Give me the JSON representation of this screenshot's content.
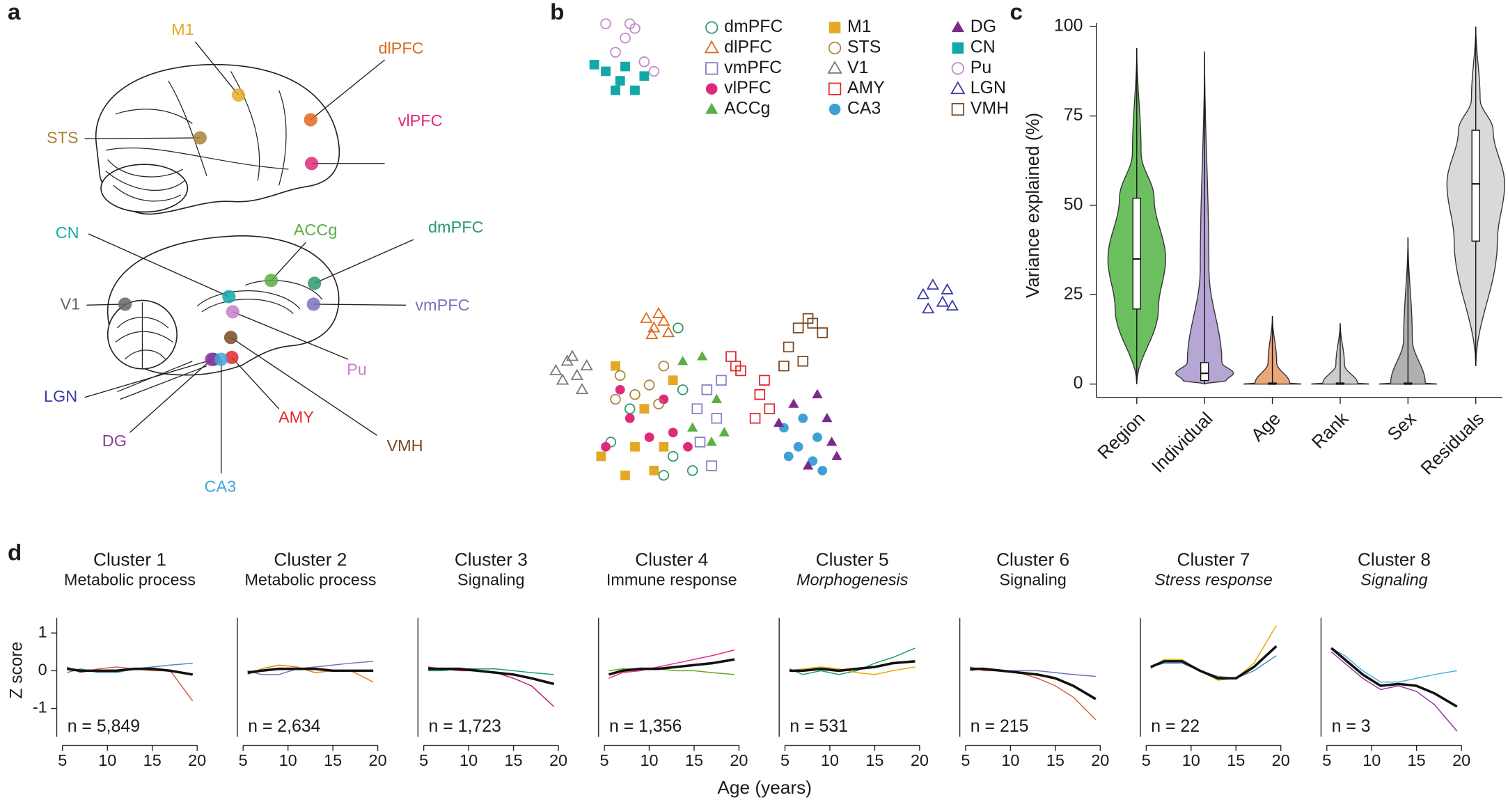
{
  "panel_labels": [
    "a",
    "b",
    "c",
    "d"
  ],
  "diagram": {
    "labels": [
      {
        "text": "M1",
        "color": "#e8a92a"
      },
      {
        "text": "dlPFC",
        "color": "#e06a1d"
      },
      {
        "text": "vlPFC",
        "color": "#e0297a"
      },
      {
        "text": "STS",
        "color": "#a8863a"
      },
      {
        "text": "CN",
        "color": "#14a9aa"
      },
      {
        "text": "ACCg",
        "color": "#5cae45"
      },
      {
        "text": "dmPFC",
        "color": "#2a9a6c"
      },
      {
        "text": "V1",
        "color": "#666666"
      },
      {
        "text": "vmPFC",
        "color": "#7b72c0"
      },
      {
        "text": "Pu",
        "color": "#c47fc9"
      },
      {
        "text": "LGN",
        "color": "#3a3aa0"
      },
      {
        "text": "AMY",
        "color": "#e0282e"
      },
      {
        "text": "DG",
        "color": "#8d3c9a"
      },
      {
        "text": "VMH",
        "color": "#7a4a25"
      },
      {
        "text": "CA3",
        "color": "#43a3d8"
      }
    ]
  },
  "chart_data": [
    {
      "type": "scatter",
      "legend": true,
      "series": [
        {
          "name": "dmPFC",
          "color": "#2a9a6c",
          "marker": "circle-open",
          "x": [
            14.8,
            19.3,
            29.5,
            31.8,
            27.3,
            34.1,
            30.7
          ],
          "y": [
            10,
            17,
            7,
            21,
            3,
            4,
            34
          ]
        },
        {
          "name": "dlPFC",
          "color": "#e06a1d",
          "marker": "triangle-open",
          "x": [
            23.2,
            25,
            27.3,
            24.5,
            28.4,
            26.1
          ],
          "y": [
            36,
            34,
            35.4,
            32.6,
            33,
            37
          ]
        },
        {
          "name": "vmPFC",
          "color": "#8b7fc0",
          "marker": "square-open",
          "x": [
            37.5,
            39.8,
            35.9,
            38.6,
            40.9,
            35.2
          ],
          "y": [
            21,
            15,
            10,
            5,
            23,
            17
          ]
        },
        {
          "name": "vlPFC",
          "color": "#e0297a",
          "marker": "circle",
          "x": [
            13.6,
            19.3,
            23.9,
            29.5,
            33,
            17,
            27.3
          ],
          "y": [
            9,
            15,
            11,
            12,
            9,
            21,
            19
          ]
        },
        {
          "name": "ACCg",
          "color": "#5cae45",
          "marker": "triangle",
          "x": [
            31.8,
            36.4,
            39.8,
            34.1,
            41.6,
            29.5,
            38.6
          ],
          "y": [
            27,
            28,
            19,
            13,
            12,
            23,
            10
          ]
        },
        {
          "name": "M1",
          "color": "#e4a824",
          "marker": "square",
          "x": [
            15.9,
            20.5,
            25,
            18.2,
            29.5,
            12.5,
            22.7,
            27.3
          ],
          "y": [
            26,
            9,
            4,
            3,
            23,
            7,
            17,
            9
          ]
        },
        {
          "name": "STS",
          "color": "#a8863a",
          "marker": "circle-open",
          "x": [
            17,
            20.5,
            23.9,
            27.3,
            15.9,
            26.1
          ],
          "y": [
            24,
            20,
            22,
            26,
            19,
            18
          ]
        },
        {
          "name": "V1",
          "color": "#777777",
          "marker": "triangle-open",
          "x": [
            1.8,
            4.5,
            6.8,
            9.1,
            3.4,
            8,
            5.7
          ],
          "y": [
            25,
            27,
            24,
            26,
            23,
            21,
            28
          ]
        },
        {
          "name": "AMY",
          "color": "#e0282e",
          "marker": "square-open",
          "x": [
            43.2,
            45.5,
            50,
            52.3,
            48.9,
            44.3,
            51.1
          ],
          "y": [
            28,
            25,
            20,
            17,
            15,
            26,
            23
          ]
        },
        {
          "name": "CA3",
          "color": "#3fa0d6",
          "marker": "circle",
          "x": [
            55.7,
            59.1,
            62.5,
            64.8,
            60.2,
            56.8,
            63.6
          ],
          "y": [
            13,
            9,
            6,
            4,
            15,
            7,
            11
          ]
        },
        {
          "name": "DG",
          "color": "#7b2a8c",
          "marker": "triangle",
          "x": [
            58,
            63.6,
            65.9,
            68.2,
            61.4,
            54.5,
            67
          ],
          "y": [
            18,
            20,
            15,
            7,
            5,
            14,
            10
          ]
        },
        {
          "name": "CN",
          "color": "#13a7a8",
          "marker": "square",
          "x": [
            10.9,
            13.6,
            17,
            20.5,
            18.2,
            22.7,
            15.9
          ],
          "y": [
            89.4,
            88,
            86,
            84,
            89,
            87,
            84
          ]
        },
        {
          "name": "Pu",
          "color": "#c18bc8",
          "marker": "circle-open",
          "x": [
            13.6,
            18.2,
            20.5,
            15.9,
            22.7,
            25,
            19.3
          ],
          "y": [
            98,
            95,
            97,
            92,
            90,
            88,
            98
          ]
        },
        {
          "name": "LGN",
          "color": "#3a3aa0",
          "marker": "triangle-open",
          "x": [
            88.6,
            90.9,
            93.2,
            95.5,
            89.8,
            94.3
          ],
          "y": [
            41,
            43,
            39.4,
            38.6,
            38,
            42
          ]
        },
        {
          "name": "VMH",
          "color": "#7a4a25",
          "marker": "square-open",
          "x": [
            56.8,
            59.1,
            62.5,
            64.8,
            55.7,
            60.2,
            61.4
          ],
          "y": [
            30,
            34,
            35,
            33,
            26,
            27,
            36
          ]
        }
      ]
    },
    {
      "type": "violin",
      "y_label": "Variance explained (%)",
      "categories": [
        "Region",
        "Individual",
        "Age",
        "Rank",
        "Sex",
        "Residuals"
      ],
      "colors": [
        "#6cbf5f",
        "#b6a6d6",
        "#e8a87c",
        "#cccccc",
        "#b0b0b0",
        "#d9d9d9"
      ],
      "min": [
        0,
        0,
        0,
        0,
        0,
        5
      ],
      "q1": [
        21,
        1,
        0,
        0,
        0,
        40
      ],
      "median": [
        35,
        3,
        0,
        0,
        0,
        56
      ],
      "q3": [
        52,
        6,
        0.3,
        0.3,
        0.3,
        71
      ],
      "max": [
        94,
        93,
        19,
        17,
        41,
        100
      ],
      "ylim": [
        0,
        100
      ],
      "yticks": [
        0,
        25,
        50,
        75,
        100
      ]
    },
    {
      "type": "line",
      "title": "Cluster 1",
      "subtitle": "Metabolic process",
      "subtitle_italic": false,
      "annotation": "n = 5,849",
      "y_label": "Z score",
      "x_label": "Age (years)",
      "x": [
        5.5,
        7,
        9,
        11,
        13,
        15,
        17,
        19.5
      ],
      "xlim": [
        5,
        20
      ],
      "xticks": [
        5,
        10,
        15,
        20
      ],
      "ylim": [
        -1.75,
        1.4
      ],
      "yticks": [
        -1,
        0,
        1
      ],
      "series": [
        {
          "color": "#d6604d",
          "values": [
            0.1,
            -0.05,
            0.05,
            0.1,
            0.05,
            0,
            0,
            -0.8
          ]
        },
        {
          "color": "#4393c3",
          "values": [
            -0.05,
            0.05,
            -0.05,
            -0.05,
            0.05,
            0.1,
            0.15,
            0.2
          ]
        },
        {
          "color": "#111111",
          "values": [
            0.05,
            0,
            0,
            0,
            0.05,
            0.05,
            0,
            -0.1
          ]
        }
      ]
    },
    {
      "type": "line",
      "title": "Cluster 2",
      "subtitle": "Metabolic process",
      "subtitle_italic": false,
      "annotation": "n = 2,634",
      "x": [
        5.5,
        7,
        9,
        11,
        13,
        15,
        17,
        19.5
      ],
      "xlim": [
        5,
        20
      ],
      "xticks": [
        5,
        10,
        15,
        20
      ],
      "ylim": [
        -1.75,
        1.4
      ],
      "series": [
        {
          "color": "#e08214",
          "values": [
            -0.1,
            0.05,
            0.15,
            0.1,
            -0.05,
            0,
            0,
            -0.3
          ]
        },
        {
          "color": "#8073ac",
          "values": [
            0,
            -0.1,
            -0.1,
            0.05,
            0.1,
            0.15,
            0.2,
            0.25
          ]
        },
        {
          "color": "#111111",
          "values": [
            -0.05,
            0,
            0.05,
            0.05,
            0.05,
            0,
            0,
            0
          ]
        }
      ]
    },
    {
      "type": "line",
      "title": "Cluster 3",
      "subtitle": "Signaling",
      "subtitle_italic": false,
      "annotation": "n = 1,723",
      "x": [
        5.5,
        7,
        9,
        11,
        13,
        15,
        17,
        19.5
      ],
      "xlim": [
        5,
        20
      ],
      "xticks": [
        5,
        10,
        15,
        20
      ],
      "ylim": [
        -1.75,
        1.4
      ],
      "series": [
        {
          "color": "#c51b7d",
          "values": [
            0.1,
            0.05,
            0,
            0,
            -0.05,
            -0.2,
            -0.4,
            -0.95
          ]
        },
        {
          "color": "#1b9e77",
          "values": [
            0,
            0,
            0.05,
            0.05,
            0.05,
            0,
            -0.05,
            -0.1
          ]
        },
        {
          "color": "#111111",
          "values": [
            0.05,
            0.05,
            0.05,
            0,
            -0.05,
            -0.1,
            -0.2,
            -0.35
          ]
        }
      ]
    },
    {
      "type": "line",
      "title": "Cluster 4",
      "subtitle": "Immune response",
      "subtitle_italic": false,
      "annotation": "n = 1,356",
      "x": [
        5.5,
        7,
        9,
        11,
        13,
        15,
        17,
        19.5
      ],
      "xlim": [
        5,
        20
      ],
      "xticks": [
        5,
        10,
        15,
        20
      ],
      "ylim": [
        -1.75,
        1.4
      ],
      "series": [
        {
          "color": "#e7298a",
          "values": [
            -0.2,
            -0.05,
            0,
            0.1,
            0.2,
            0.3,
            0.4,
            0.55
          ]
        },
        {
          "color": "#66a61e",
          "values": [
            0,
            0.05,
            0.05,
            0.05,
            0,
            0,
            -0.05,
            -0.1
          ]
        },
        {
          "color": "#111111",
          "values": [
            -0.1,
            0,
            0.05,
            0.05,
            0.1,
            0.15,
            0.2,
            0.3
          ]
        }
      ]
    },
    {
      "type": "line",
      "title": "Cluster 5",
      "subtitle": "Morphogenesis",
      "subtitle_italic": true,
      "annotation": "n = 531",
      "x": [
        5.5,
        7,
        9,
        11,
        13,
        15,
        17,
        19.5
      ],
      "xlim": [
        5,
        20
      ],
      "xticks": [
        5,
        10,
        15,
        20
      ],
      "ylim": [
        -1.75,
        1.4
      ],
      "series": [
        {
          "color": "#1b9e77",
          "values": [
            0.05,
            -0.1,
            0,
            -0.1,
            0,
            0.2,
            0.35,
            0.6
          ]
        },
        {
          "color": "#e6ab02",
          "values": [
            0,
            0.05,
            0.1,
            0.05,
            -0.05,
            -0.1,
            0,
            0.1
          ]
        },
        {
          "color": "#111111",
          "values": [
            0,
            0,
            0.05,
            0,
            0.05,
            0.1,
            0.2,
            0.25
          ]
        }
      ]
    },
    {
      "type": "line",
      "title": "Cluster 6",
      "subtitle": "Signaling",
      "subtitle_italic": false,
      "annotation": "n = 215",
      "x": [
        5.5,
        7,
        9,
        11,
        13,
        15,
        17,
        19.5
      ],
      "xlim": [
        5,
        20
      ],
      "xticks": [
        5,
        10,
        15,
        20
      ],
      "ylim": [
        -1.75,
        1.4
      ],
      "series": [
        {
          "color": "#d6604d",
          "values": [
            0.1,
            0,
            0,
            -0.05,
            -0.2,
            -0.4,
            -0.7,
            -1.3
          ]
        },
        {
          "color": "#7570b3",
          "values": [
            0,
            0.05,
            0,
            0,
            0,
            -0.05,
            -0.1,
            -0.15
          ]
        },
        {
          "color": "#111111",
          "values": [
            0.05,
            0.05,
            0,
            -0.05,
            -0.1,
            -0.2,
            -0.4,
            -0.75
          ]
        }
      ]
    },
    {
      "type": "line",
      "title": "Cluster 7",
      "subtitle": "Stress response",
      "subtitle_italic": true,
      "annotation": "n = 22",
      "x": [
        5.5,
        7,
        9,
        11,
        13,
        15,
        17,
        19.5
      ],
      "xlim": [
        5,
        20
      ],
      "xticks": [
        5,
        10,
        15,
        20
      ],
      "ylim": [
        -1.75,
        1.4
      ],
      "series": [
        {
          "color": "#e6ab02",
          "values": [
            0.05,
            0.3,
            0.3,
            0,
            -0.25,
            -0.2,
            0.2,
            1.2
          ]
        },
        {
          "color": "#4393c3",
          "values": [
            0.1,
            0.2,
            0.2,
            0,
            -0.15,
            -0.2,
            0,
            0.4
          ]
        },
        {
          "color": "#111111",
          "values": [
            0.1,
            0.25,
            0.25,
            0,
            -0.2,
            -0.2,
            0.1,
            0.65
          ]
        }
      ]
    },
    {
      "type": "line",
      "title": "Cluster 8",
      "subtitle": "Signaling",
      "subtitle_italic": true,
      "annotation": "n = 3",
      "x": [
        5.5,
        7,
        9,
        11,
        13,
        15,
        17,
        19.5
      ],
      "xlim": [
        5,
        20
      ],
      "xticks": [
        5,
        10,
        15,
        20
      ],
      "ylim": [
        -1.75,
        1.4
      ],
      "series": [
        {
          "color": "#4daddf",
          "values": [
            0.6,
            0.4,
            0,
            -0.3,
            -0.3,
            -0.2,
            -0.1,
            0
          ]
        },
        {
          "color": "#8d3c9a",
          "values": [
            0.5,
            0.2,
            -0.2,
            -0.5,
            -0.4,
            -0.55,
            -0.9,
            -1.6
          ]
        },
        {
          "color": "#111111",
          "values": [
            0.6,
            0.3,
            -0.1,
            -0.4,
            -0.35,
            -0.4,
            -0.6,
            -0.95
          ]
        }
      ]
    }
  ]
}
